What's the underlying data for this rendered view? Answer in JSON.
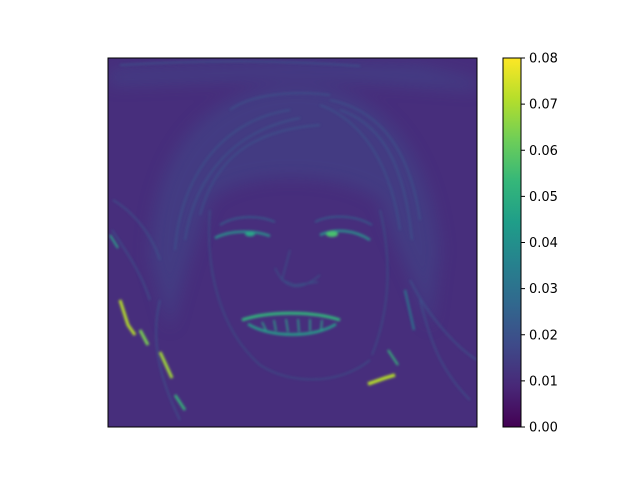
{
  "chart_data": {
    "type": "heatmap",
    "title": "",
    "xlabel": "",
    "ylabel": "",
    "x_ticks_visible": false,
    "y_ticks_visible": false,
    "image_description": "saliency / gradient-magnitude map of a smiling face; bright edges along the hair, eyes, teeth and jawline",
    "colormap": "viridis",
    "colormap_stops": [
      "#440154",
      "#482878",
      "#3e4a89",
      "#31688e",
      "#26828e",
      "#1f9e89",
      "#35b779",
      "#6ece58",
      "#b5de2b",
      "#fde725"
    ],
    "colorbar": {
      "vmin": 0.0,
      "vmax": 0.08,
      "ticks": [
        "0.00",
        "0.01",
        "0.02",
        "0.03",
        "0.04",
        "0.05",
        "0.06",
        "0.07",
        "0.08"
      ]
    },
    "approximate_value_levels": {
      "background": 0.012,
      "hair_strands": 0.02,
      "eye_edges": 0.045,
      "teeth": 0.05,
      "jaw_hair_highlights": 0.065
    }
  }
}
